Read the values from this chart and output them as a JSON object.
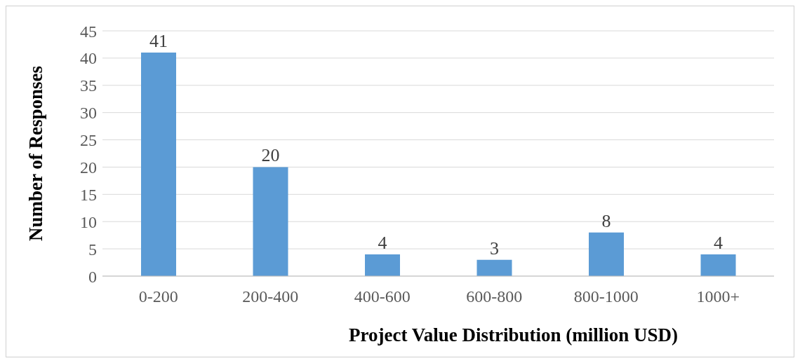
{
  "chart_data": {
    "type": "bar",
    "xlabel": "Project Value Distribution (million USD)",
    "ylabel": "Number of  Responses",
    "categories": [
      "0-200",
      "200-400",
      "400-600",
      "600-800",
      "800-1000",
      "1000+"
    ],
    "values": [
      41,
      20,
      4,
      3,
      8,
      4
    ],
    "color": "#5b9bd5",
    "ylim": [
      0,
      45
    ],
    "yticks": [
      0,
      5,
      10,
      15,
      20,
      25,
      30,
      35,
      40,
      45
    ],
    "grid": "y",
    "data_labels": true
  }
}
